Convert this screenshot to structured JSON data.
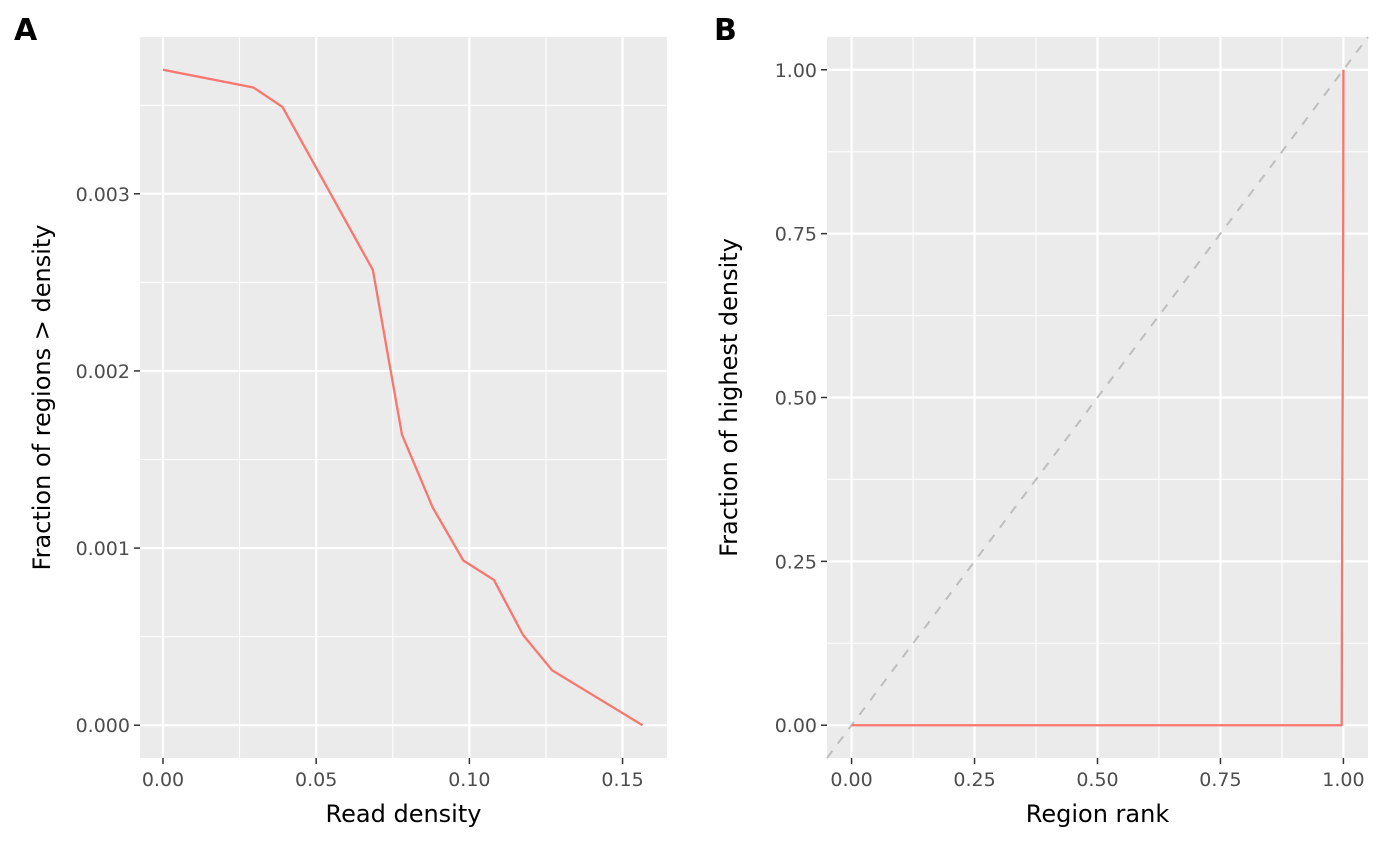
{
  "figure": {
    "background": "#ffffff",
    "panel_background": "#ebebeb",
    "grid_color": "#ffffff",
    "line_color": "#f8766d",
    "reference_line_color": "#bebebe"
  },
  "chart_data": [
    {
      "type": "line",
      "panel_label": "A",
      "xlabel": "Read density",
      "ylabel": "Fraction of regions > density",
      "xlim": [
        -0.0075,
        0.1645
      ],
      "ylim": [
        -0.000185,
        0.003885
      ],
      "xticks": [
        0,
        0.05,
        0.1,
        0.15
      ],
      "xtick_labels": [
        "0.00",
        "0.05",
        "0.10",
        "0.15"
      ],
      "yticks": [
        0,
        0.001,
        0.002,
        0.003
      ],
      "ytick_labels": [
        "0.000",
        "0.001",
        "0.002",
        "0.003"
      ],
      "grid": true,
      "series": [
        {
          "x": [
            0.0,
            0.0295,
            0.039,
            0.0685,
            0.078,
            0.088,
            0.098,
            0.108,
            0.1175,
            0.127,
            0.1565
          ],
          "y": [
            0.0037,
            0.0036,
            0.00349,
            0.00257,
            0.00164,
            0.00123,
            0.00093,
            0.00082,
            0.00051,
            0.00031,
            0.0
          ]
        }
      ]
    },
    {
      "type": "line",
      "panel_label": "B",
      "xlabel": "Region rank",
      "ylabel": "Fraction of highest density",
      "xlim": [
        -0.05,
        1.05
      ],
      "ylim": [
        -0.05,
        1.05
      ],
      "xticks": [
        0,
        0.25,
        0.5,
        0.75,
        1.0
      ],
      "xtick_labels": [
        "0.00",
        "0.25",
        "0.50",
        "0.75",
        "1.00"
      ],
      "yticks": [
        0,
        0.25,
        0.5,
        0.75,
        1.0
      ],
      "ytick_labels": [
        "0.00",
        "0.25",
        "0.50",
        "0.75",
        "1.00"
      ],
      "grid": true,
      "reference_line": {
        "x": [
          -0.05,
          1.05
        ],
        "y": [
          -0.05,
          1.05
        ],
        "style": "dashed"
      },
      "series": [
        {
          "x": [
            0.0,
            0.9965,
            0.9975,
            0.9985,
            0.9995,
            1.0
          ],
          "y": [
            0.0,
            0.0,
            0.3,
            0.5,
            0.75,
            1.0
          ]
        }
      ]
    }
  ]
}
